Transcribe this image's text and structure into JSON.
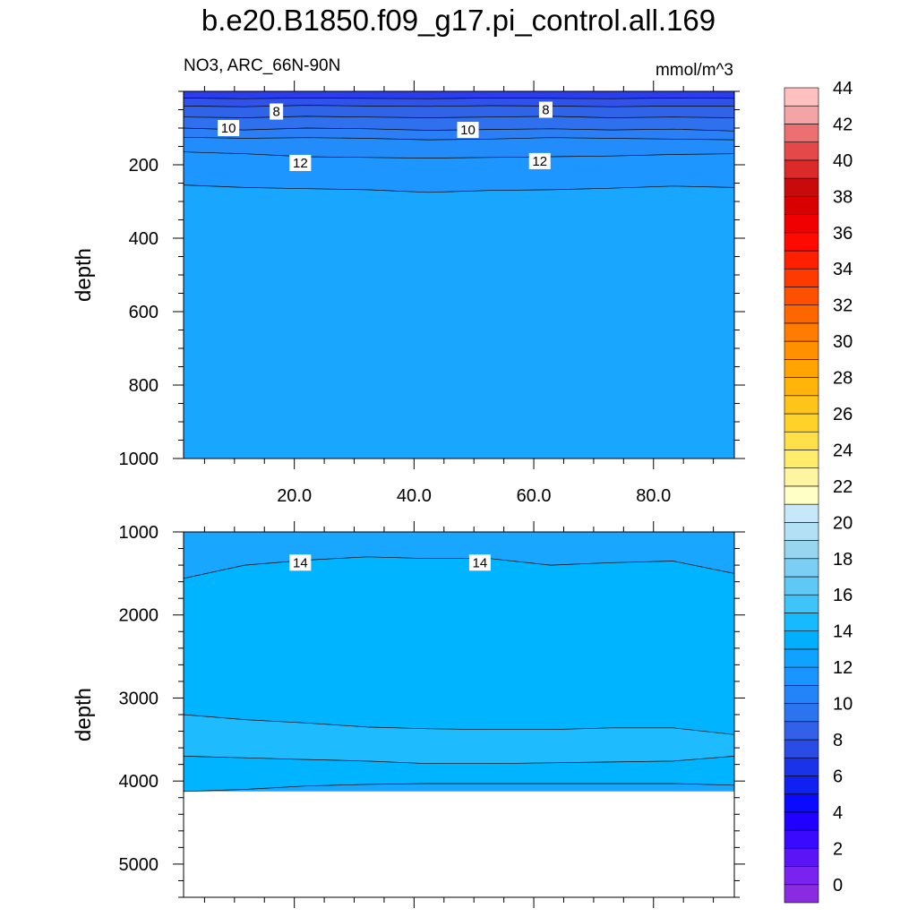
{
  "title": "b.e20.B1850.f09_g17.pi_control.all.169",
  "subtitle_left": "NO3, ARC_66N-90N",
  "subtitle_right": "mmol/m^3",
  "chart_data": [
    {
      "type": "contour",
      "panel": "upper",
      "ylabel": "depth",
      "y_reversed": true,
      "ylim": [
        0,
        1000
      ],
      "y_ticks": [
        "200",
        "400",
        "600",
        "800",
        "1000"
      ],
      "xlim": [
        1.5,
        93.5
      ],
      "x_ticks": [
        "20.0",
        "40.0",
        "60.0",
        "80.0"
      ],
      "x_tick_values": [
        20,
        40,
        60,
        80
      ],
      "fills": [
        {
          "level": 4,
          "color": "#1a28ff"
        },
        {
          "level": 6,
          "color": "#2a4fe6"
        },
        {
          "level": 8,
          "color": "#3064e8"
        },
        {
          "level": 10,
          "color": "#2a7ff6"
        },
        {
          "level": 12,
          "color": "#1e96ff"
        },
        {
          "level": 14,
          "color": "#18a6ff"
        }
      ],
      "contours": [
        {
          "level": 6,
          "depth": [
            0,
            0,
            0,
            0,
            0,
            0,
            0,
            0,
            0,
            0
          ]
        },
        {
          "level": 7,
          "depth": [
            18,
            20,
            18,
            19,
            20,
            18,
            19,
            20,
            18,
            19
          ]
        },
        {
          "level": 8,
          "depth": [
            40,
            42,
            38,
            40,
            41,
            39,
            40,
            42,
            40,
            40
          ]
        },
        {
          "level": 9,
          "depth": [
            70,
            72,
            68,
            70,
            72,
            70,
            68,
            72,
            70,
            72
          ]
        },
        {
          "level": 10,
          "depth": [
            100,
            105,
            100,
            102,
            106,
            104,
            102,
            105,
            103,
            108
          ]
        },
        {
          "level": 11,
          "depth": [
            125,
            128,
            126,
            128,
            132,
            130,
            126,
            128,
            130,
            132
          ]
        },
        {
          "level": 12,
          "depth": [
            165,
            170,
            178,
            180,
            182,
            180,
            178,
            176,
            172,
            170
          ]
        },
        {
          "level": 13,
          "depth": [
            255,
            262,
            265,
            268,
            275,
            270,
            268,
            264,
            258,
            262
          ]
        }
      ],
      "contour_labels": [
        {
          "text": "8",
          "x": 17,
          "depth": 55
        },
        {
          "text": "8",
          "x": 62,
          "depth": 50
        },
        {
          "text": "10",
          "x": 9,
          "depth": 100
        },
        {
          "text": "10",
          "x": 49,
          "depth": 105
        },
        {
          "text": "12",
          "x": 21,
          "depth": 195
        },
        {
          "text": "12",
          "x": 61,
          "depth": 190
        }
      ]
    },
    {
      "type": "contour",
      "panel": "lower",
      "ylabel": "depth",
      "y_reversed": true,
      "ylim": [
        1000,
        5400
      ],
      "y_ticks": [
        "1000",
        "2000",
        "3000",
        "4000",
        "5000"
      ],
      "xlim": [
        1.5,
        93.5
      ],
      "bottom_depth": 4125,
      "fills": [
        {
          "level": 14,
          "color": "#18a6ff"
        },
        {
          "level": 15,
          "color": "#00b4ff"
        },
        {
          "level": 16,
          "color": "#1ebcff"
        },
        {
          "level": 15,
          "color": "#00b4ff"
        }
      ],
      "contours": [
        {
          "level": 14,
          "depth": [
            1560,
            1400,
            1340,
            1300,
            1320,
            1320,
            1400,
            1370,
            1350,
            1500
          ]
        },
        {
          "level": 15,
          "depth": [
            3200,
            3260,
            3300,
            3350,
            3370,
            3380,
            3380,
            3360,
            3360,
            3440
          ]
        },
        {
          "level": 16,
          "depth": [
            3700,
            3720,
            3740,
            3760,
            3790,
            3790,
            3780,
            3770,
            3760,
            3700
          ]
        },
        {
          "level": 15.5,
          "depth": [
            4125,
            4100,
            4060,
            4040,
            4030,
            4030,
            4030,
            4030,
            4030,
            4050
          ]
        }
      ],
      "contour_labels": [
        {
          "text": "14",
          "x": 21,
          "depth": 1370
        },
        {
          "text": "14",
          "x": 51,
          "depth": 1370
        }
      ]
    }
  ],
  "colorbar": {
    "labels": [
      "0",
      "2",
      "4",
      "6",
      "8",
      "10",
      "12",
      "14",
      "16",
      "18",
      "20",
      "22",
      "24",
      "26",
      "28",
      "30",
      "32",
      "34",
      "36",
      "38",
      "40",
      "42",
      "44"
    ],
    "colors": [
      "#8a2be2",
      "#7a22f0",
      "#5a14f5",
      "#3a0aff",
      "#2200ff",
      "#0a0aff",
      "#1020f0",
      "#1a32e8",
      "#2a4ce6",
      "#3260e8",
      "#2a74f0",
      "#2284f8",
      "#1a94ff",
      "#10a2ff",
      "#00b0ff",
      "#18baff",
      "#3ec4f8",
      "#60c8f4",
      "#7ccff4",
      "#98d6f0",
      "#b2e0f4",
      "#c6e8f8",
      "#ffffc6",
      "#fff5a0",
      "#ffec6a",
      "#ffe04a",
      "#ffd22a",
      "#ffc41a",
      "#ffb40a",
      "#ffa400",
      "#ff9000",
      "#ff7c00",
      "#ff6600",
      "#ff5000",
      "#ff3a00",
      "#ff2000",
      "#ff0a00",
      "#f00000",
      "#d80000",
      "#c80a0a",
      "#dc2a2a",
      "#e44848",
      "#ec7070",
      "#f4a4a4",
      "#ffc0c0"
    ]
  }
}
